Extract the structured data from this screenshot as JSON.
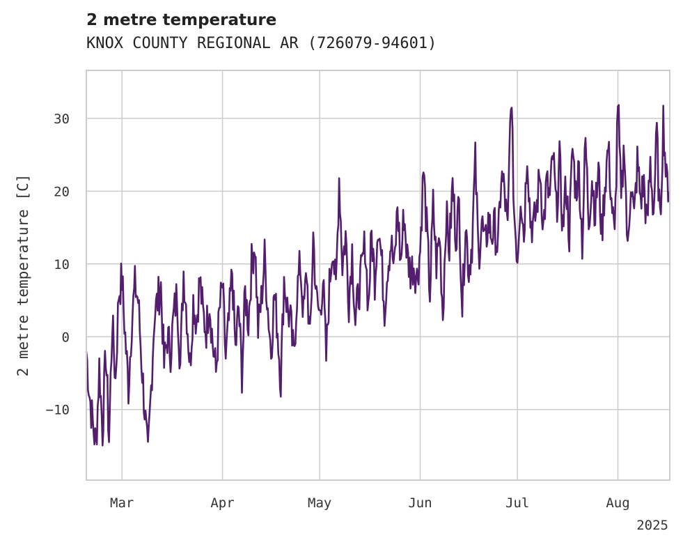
{
  "chart_data": {
    "type": "line",
    "title": "2 metre temperature",
    "subtitle": "KNOX COUNTY REGIONAL AR (726079-94601)",
    "xlabel": "",
    "ylabel": "2 metre temperature [C]",
    "year_label": "2025",
    "x_ticks": [
      {
        "date": "2025-03-01",
        "label": "Mar"
      },
      {
        "date": "2025-04-01",
        "label": "Apr"
      },
      {
        "date": "2025-05-01",
        "label": "May"
      },
      {
        "date": "2025-06-01",
        "label": "Jun"
      },
      {
        "date": "2025-07-01",
        "label": "Jul"
      },
      {
        "date": "2025-08-01",
        "label": "Aug"
      }
    ],
    "y_ticks": [
      -10,
      0,
      10,
      20,
      30
    ],
    "xlim": [
      "2025-02-18",
      "2025-08-17"
    ],
    "ylim": [
      -19.7,
      36.6
    ],
    "grid": true,
    "color": "#541E6E",
    "series": [
      {
        "x": [
          "2025-02-18",
          "2025-02-19",
          "2025-02-20",
          "2025-02-21",
          "2025-02-22",
          "2025-02-23",
          "2025-02-24",
          "2025-02-25",
          "2025-02-26",
          "2025-02-27",
          "2025-02-28",
          "2025-03-01",
          "2025-03-02",
          "2025-03-03",
          "2025-03-04",
          "2025-03-05",
          "2025-03-06",
          "2025-03-07",
          "2025-03-08",
          "2025-03-09",
          "2025-03-10",
          "2025-03-11",
          "2025-03-12",
          "2025-03-13",
          "2025-03-14",
          "2025-03-15",
          "2025-03-16",
          "2025-03-17",
          "2025-03-18",
          "2025-03-19",
          "2025-03-20",
          "2025-03-21",
          "2025-03-22",
          "2025-03-23",
          "2025-03-24",
          "2025-03-25",
          "2025-03-26",
          "2025-03-27",
          "2025-03-28",
          "2025-03-29",
          "2025-03-30",
          "2025-03-31",
          "2025-04-01",
          "2025-04-02",
          "2025-04-03",
          "2025-04-04",
          "2025-04-05",
          "2025-04-06",
          "2025-04-07",
          "2025-04-08",
          "2025-04-09",
          "2025-04-10",
          "2025-04-11",
          "2025-04-12",
          "2025-04-13",
          "2025-04-14",
          "2025-04-15",
          "2025-04-16",
          "2025-04-17",
          "2025-04-18",
          "2025-04-19",
          "2025-04-20",
          "2025-04-21",
          "2025-04-22",
          "2025-04-23",
          "2025-04-24",
          "2025-04-25",
          "2025-04-26",
          "2025-04-27",
          "2025-04-28",
          "2025-04-29",
          "2025-04-30",
          "2025-05-01",
          "2025-05-02",
          "2025-05-03",
          "2025-05-04",
          "2025-05-05",
          "2025-05-06",
          "2025-05-07",
          "2025-05-08",
          "2025-05-09",
          "2025-05-10",
          "2025-05-11",
          "2025-05-12",
          "2025-05-13",
          "2025-05-14",
          "2025-05-15",
          "2025-05-16",
          "2025-05-17",
          "2025-05-18",
          "2025-05-19",
          "2025-05-20",
          "2025-05-21",
          "2025-05-22",
          "2025-05-23",
          "2025-05-24",
          "2025-05-25",
          "2025-05-26",
          "2025-05-27",
          "2025-05-28",
          "2025-05-29",
          "2025-05-30",
          "2025-05-31",
          "2025-06-01",
          "2025-06-02",
          "2025-06-03",
          "2025-06-04",
          "2025-06-05",
          "2025-06-06",
          "2025-06-07",
          "2025-06-08",
          "2025-06-09",
          "2025-06-10",
          "2025-06-11",
          "2025-06-12",
          "2025-06-13",
          "2025-06-14",
          "2025-06-15",
          "2025-06-16",
          "2025-06-17",
          "2025-06-18",
          "2025-06-19",
          "2025-06-20",
          "2025-06-21",
          "2025-06-22",
          "2025-06-23",
          "2025-06-24",
          "2025-06-25",
          "2025-06-26",
          "2025-06-27",
          "2025-06-28",
          "2025-06-29",
          "2025-06-30",
          "2025-07-01",
          "2025-07-02",
          "2025-07-03",
          "2025-07-04",
          "2025-07-05",
          "2025-07-06",
          "2025-07-07",
          "2025-07-08",
          "2025-07-09",
          "2025-07-10",
          "2025-07-11",
          "2025-07-12",
          "2025-07-13",
          "2025-07-14",
          "2025-07-15",
          "2025-07-16",
          "2025-07-17",
          "2025-07-18",
          "2025-07-19",
          "2025-07-20",
          "2025-07-21",
          "2025-07-22",
          "2025-07-23",
          "2025-07-24",
          "2025-07-25",
          "2025-07-26",
          "2025-07-27",
          "2025-07-28",
          "2025-07-29",
          "2025-07-30",
          "2025-07-31",
          "2025-08-01",
          "2025-08-02",
          "2025-08-03",
          "2025-08-04",
          "2025-08-05",
          "2025-08-06",
          "2025-08-07",
          "2025-08-08",
          "2025-08-09",
          "2025-08-10",
          "2025-08-11",
          "2025-08-12",
          "2025-08-13",
          "2025-08-14",
          "2025-08-15",
          "2025-08-16"
        ],
        "y": [
          -2,
          -8,
          -12,
          -15,
          -4,
          -13,
          -2,
          -14,
          2,
          -6,
          6,
          8,
          0,
          -7,
          2,
          7,
          5,
          -3,
          -10,
          -17,
          -7,
          3,
          5,
          7,
          -4,
          0,
          -2,
          3,
          6,
          -4,
          9,
          3,
          -4,
          5,
          2,
          8,
          3,
          1,
          5,
          -1,
          -5,
          3,
          7,
          -3,
          2,
          9,
          -2,
          4,
          -5,
          6,
          2,
          10,
          13,
          1,
          5,
          11,
          4,
          -2,
          6,
          1,
          -6,
          8,
          4,
          2,
          -3,
          6,
          10,
          3,
          9,
          -1,
          14,
          5,
          3,
          8,
          -3,
          7,
          13,
          6,
          22,
          10,
          14,
          5,
          12,
          2,
          6,
          9,
          13,
          4,
          14,
          8,
          16,
          11,
          4,
          10,
          13,
          9,
          18,
          10,
          17,
          11,
          9,
          10,
          8,
          12,
          23,
          15,
          6,
          18,
          10,
          14,
          3,
          17,
          12,
          21,
          14,
          18,
          4,
          16,
          9,
          13,
          24,
          11,
          16,
          12,
          16,
          14,
          15,
          12,
          22,
          20,
          14,
          34,
          17,
          11,
          20,
          14,
          26,
          16,
          15,
          18,
          23,
          15,
          21,
          19,
          25,
          17,
          24,
          15,
          21,
          14,
          26,
          20,
          23,
          13,
          27,
          16,
          22,
          17,
          23,
          14,
          21,
          26,
          19,
          13,
          33,
          18,
          27,
          11,
          22,
          16,
          24,
          19,
          21,
          15,
          24,
          17,
          28,
          15,
          30,
          21
        ]
      }
    ]
  }
}
